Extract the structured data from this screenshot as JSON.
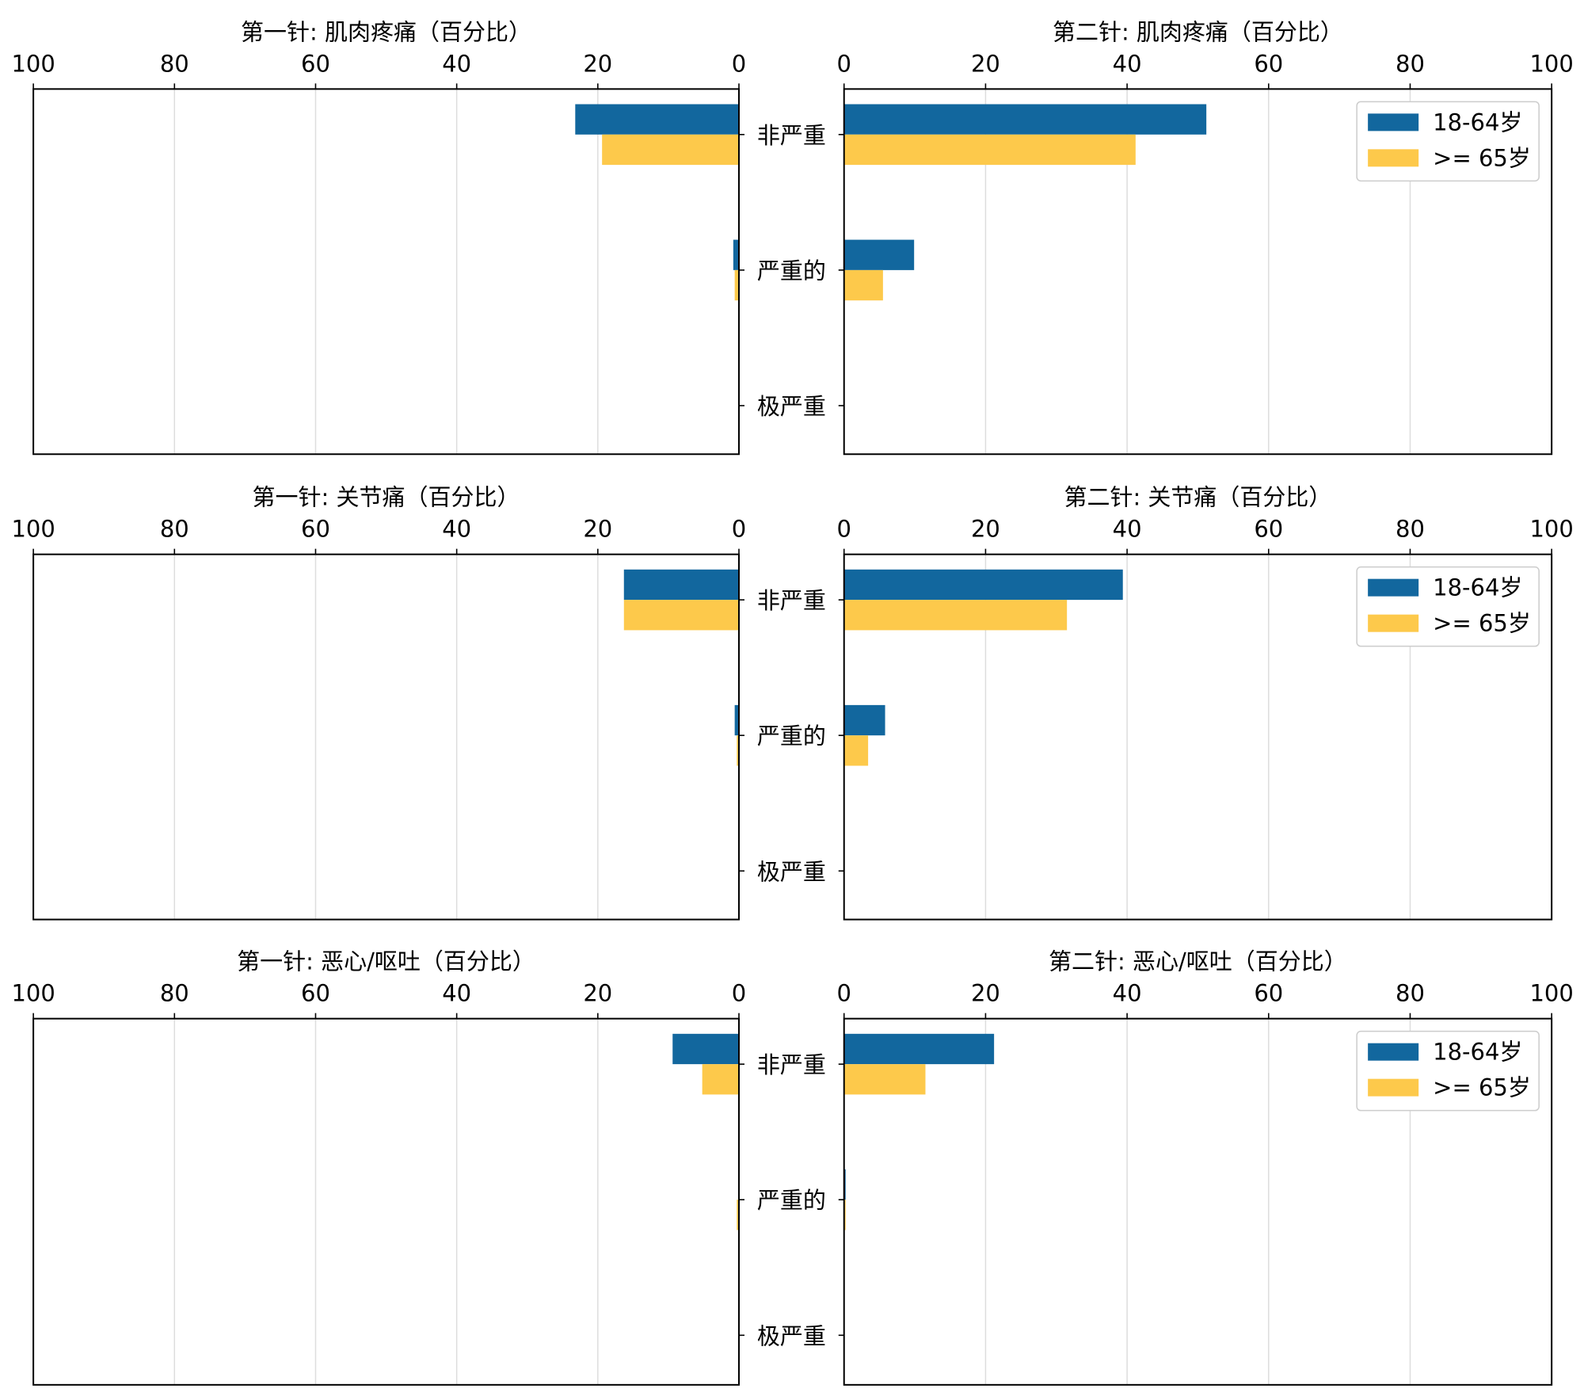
{
  "colors": {
    "age_18_64": "#12679e",
    "age_65_plus": "#fdc94b"
  },
  "legend": {
    "labels": [
      "18-64岁",
      ">= 65岁"
    ]
  },
  "chart_data": [
    {
      "type": "bar",
      "orientation": "horizontal",
      "side": "left",
      "title": "第一针: 肌肉疼痛（百分比）",
      "categories": [
        "非严重",
        "严重的",
        "极严重"
      ],
      "series": [
        {
          "name": "18-64岁",
          "values": [
            23.2,
            0.8,
            0
          ]
        },
        {
          "name": ">= 65岁",
          "values": [
            19.4,
            0.6,
            0
          ]
        }
      ],
      "xlim": [
        100,
        0
      ],
      "xticks": [
        "100",
        "80",
        "60",
        "40",
        "20",
        "0"
      ],
      "grid": true,
      "legend": "none"
    },
    {
      "type": "bar",
      "orientation": "horizontal",
      "side": "right",
      "title": "第二针: 肌肉疼痛（百分比）",
      "categories": [
        "非严重",
        "严重的",
        "极严重"
      ],
      "series": [
        {
          "name": "18-64岁",
          "values": [
            51.2,
            9.9,
            0
          ]
        },
        {
          "name": ">= 65岁",
          "values": [
            41.2,
            5.5,
            0
          ]
        }
      ],
      "xlim": [
        0,
        100
      ],
      "xticks": [
        "0",
        "20",
        "40",
        "60",
        "80",
        "100"
      ],
      "grid": true,
      "legend": "top-right"
    },
    {
      "type": "bar",
      "orientation": "horizontal",
      "side": "left",
      "title": "第一针: 关节痛（百分比）",
      "categories": [
        "非严重",
        "严重的",
        "极严重"
      ],
      "series": [
        {
          "name": "18-64岁",
          "values": [
            16.3,
            0.6,
            0
          ]
        },
        {
          "name": ">= 65岁",
          "values": [
            16.3,
            0.3,
            0
          ]
        }
      ],
      "xlim": [
        100,
        0
      ],
      "xticks": [
        "100",
        "80",
        "60",
        "40",
        "20",
        "0"
      ],
      "grid": true,
      "legend": "none"
    },
    {
      "type": "bar",
      "orientation": "horizontal",
      "side": "right",
      "title": "第二针: 关节痛（百分比）",
      "categories": [
        "非严重",
        "严重的",
        "极严重"
      ],
      "series": [
        {
          "name": "18-64岁",
          "values": [
            39.4,
            5.8,
            0
          ]
        },
        {
          "name": ">= 65岁",
          "values": [
            31.5,
            3.4,
            0
          ]
        }
      ],
      "xlim": [
        0,
        100
      ],
      "xticks": [
        "0",
        "20",
        "40",
        "60",
        "80",
        "100"
      ],
      "grid": true,
      "legend": "top-right"
    },
    {
      "type": "bar",
      "orientation": "horizontal",
      "side": "left",
      "title": "第一针: 恶心/呕吐（百分比）",
      "categories": [
        "非严重",
        "严重的",
        "极严重"
      ],
      "series": [
        {
          "name": "18-64岁",
          "values": [
            9.4,
            0,
            0
          ]
        },
        {
          "name": ">= 65岁",
          "values": [
            5.2,
            0.3,
            0
          ]
        }
      ],
      "xlim": [
        100,
        0
      ],
      "xticks": [
        "100",
        "80",
        "60",
        "40",
        "20",
        "0"
      ],
      "grid": true,
      "legend": "none"
    },
    {
      "type": "bar",
      "orientation": "horizontal",
      "side": "right",
      "title": "第二针: 恶心/呕吐（百分比）",
      "categories": [
        "非严重",
        "严重的",
        "极严重"
      ],
      "series": [
        {
          "name": "18-64岁",
          "values": [
            21.2,
            0.1,
            0
          ]
        },
        {
          "name": ">= 65岁",
          "values": [
            11.5,
            0.1,
            0
          ]
        }
      ],
      "xlim": [
        0,
        100
      ],
      "xticks": [
        "0",
        "20",
        "40",
        "60",
        "80",
        "100"
      ],
      "grid": true,
      "legend": "top-right"
    }
  ]
}
